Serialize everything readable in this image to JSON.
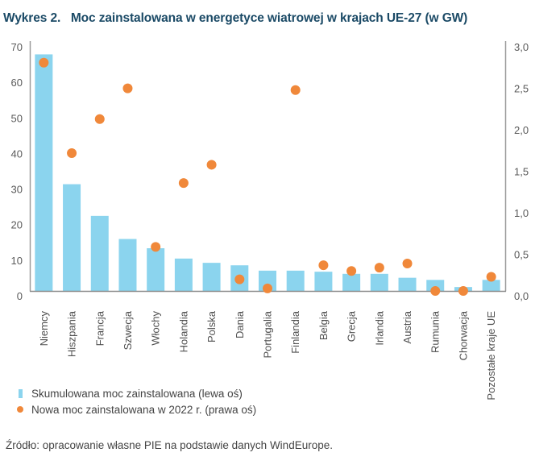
{
  "title": "Wykres 2.   Moc zainstalowana w energetyce wiatrowej w krajach UE-27 (w GW)",
  "chart_data": {
    "type": "bar",
    "title": "Moc zainstalowana w energetyce wiatrowej w krajach UE-27 (w GW)",
    "figure_label": "Wykres 2.",
    "xlabel": "",
    "ylabel": "",
    "categories": [
      "Niemcy",
      "Hiszpania",
      "Francja",
      "Szwecja",
      "Włochy",
      "Holandia",
      "Polska",
      "Dania",
      "Portugalia",
      "Finlandia",
      "Belgia",
      "Grecja",
      "Irlandia",
      "Austria",
      "Rumunia",
      "Chorwacja",
      "Pozostałe kraje UE"
    ],
    "series": [
      {
        "name": "Skumulowana moc zainstalowana (lewa oś)",
        "type": "bar",
        "axis": "left",
        "color": "#8bd4ee",
        "values": [
          66.5,
          30.0,
          21.1,
          14.6,
          12.0,
          9.1,
          7.9,
          7.2,
          5.7,
          5.7,
          5.4,
          4.8,
          4.8,
          3.7,
          3.1,
          1.1,
          3.1
        ]
      },
      {
        "name": "Nowa moc zainstalowana w 2022 r. (prawa oś)",
        "type": "scatter",
        "axis": "right",
        "color": "#f0883a",
        "values": [
          2.75,
          1.66,
          2.07,
          2.44,
          0.53,
          1.3,
          1.52,
          0.14,
          0.03,
          2.42,
          0.31,
          0.24,
          0.28,
          0.33,
          0.0,
          0.0,
          0.17
        ]
      }
    ],
    "y_left": {
      "range": [
        0,
        70
      ],
      "ticks": [
        "0",
        "10",
        "20",
        "30",
        "40",
        "50",
        "60",
        "70"
      ]
    },
    "y_right": {
      "range": [
        0,
        3.0
      ],
      "ticks": [
        "0,0",
        "0,5",
        "1,0",
        "1,5",
        "2,0",
        "2,5",
        "3,0"
      ]
    },
    "grid": false,
    "legend_position": "bottom-left"
  },
  "legend": [
    {
      "label": "Skumulowana moc zainstalowana (lewa oś)",
      "marker": "bar"
    },
    {
      "label": "Nowa moc zainstalowana w 2022 r. (prawa oś)",
      "marker": "dot"
    }
  ],
  "source": "Źródło: opracowanie własne PIE na podstawie danych WindEurope."
}
